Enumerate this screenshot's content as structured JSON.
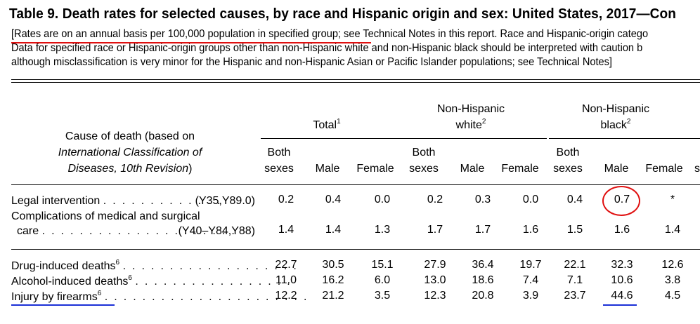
{
  "title": "Table 9. Death rates for selected causes, by race and Hispanic origin and sex: United States, 2017—Con",
  "intro": {
    "line1_highlight": "[Rates are on an annual basis per 100,000 population in specified group",
    "line1_rest": "; see Technical Notes in this report. Race and Hispanic-origin catego",
    "line2": "Data for specified race or Hispanic-origin groups other than non-Hispanic white and non-Hispanic black should be interpreted with caution b",
    "line3": "although misclassification is very minor for the Hispanic and non-Hispanic Asian or Pacific Islander populations; see Technical Notes]"
  },
  "header": {
    "cause_line1": "Cause of death (based on",
    "cause_line2": "International Classification of",
    "cause_line3": "Diseases, 10th Revision",
    "cause_close": ")",
    "groups": [
      {
        "label_line1": "Total",
        "label_line2": "",
        "sup": "1"
      },
      {
        "label_line1": "Non-Hispanic",
        "label_line2": "white",
        "sup": "2"
      },
      {
        "label_line1": "Non-Hispanic",
        "label_line2": "black",
        "sup": "2"
      }
    ],
    "sub": {
      "both1": "Both",
      "both2": "sexes",
      "male": "Male",
      "female": "Female"
    },
    "cut_col": "s"
  },
  "rows": [
    {
      "name": "Legal intervention",
      "dots": ". . . . . . . . . . . . .",
      "code": "(Y35,Y89.0)",
      "values": [
        "0.2",
        "0.4",
        "0.0",
        "0.2",
        "0.3",
        "0.0",
        "0.4",
        "0.7",
        "*"
      ]
    },
    {
      "name_line1": "Complications of medical and surgical",
      "name": "care",
      "dots": ". . . . . . . . . . . . . . . . . . . . .",
      "code": "(Y40–Y84,Y88)",
      "values": [
        "1.4",
        "1.4",
        "1.3",
        "1.7",
        "1.7",
        "1.6",
        "1.5",
        "1.6",
        "1.4"
      ]
    },
    {
      "name": "Drug-induced deaths",
      "sup": "6",
      "dots": ". . . . . . . . . . . . . . . . . . .",
      "values": [
        "22.7",
        "30.5",
        "15.1",
        "27.9",
        "36.4",
        "19.7",
        "22.1",
        "32.3",
        "12.6"
      ]
    },
    {
      "name": "Alcohol-induced deaths",
      "sup": "6",
      "dots": ". . . . . . . . . . . . . . . . .",
      "values": [
        "11.0",
        "16.2",
        "6.0",
        "13.0",
        "18.6",
        "7.4",
        "7.1",
        "10.6",
        "3.8"
      ]
    },
    {
      "name": "Injury by firearms",
      "sup": "6",
      "dots": ". . . . . . . . . . . . . . . . . . . . . .",
      "values": [
        "12.2",
        "21.2",
        "3.5",
        "12.3",
        "20.8",
        "3.9",
        "23.7",
        "44.6",
        "4.5"
      ]
    }
  ],
  "annotations": {
    "highlight_color": "#e01010",
    "underline_color": "#1a2fd6"
  }
}
